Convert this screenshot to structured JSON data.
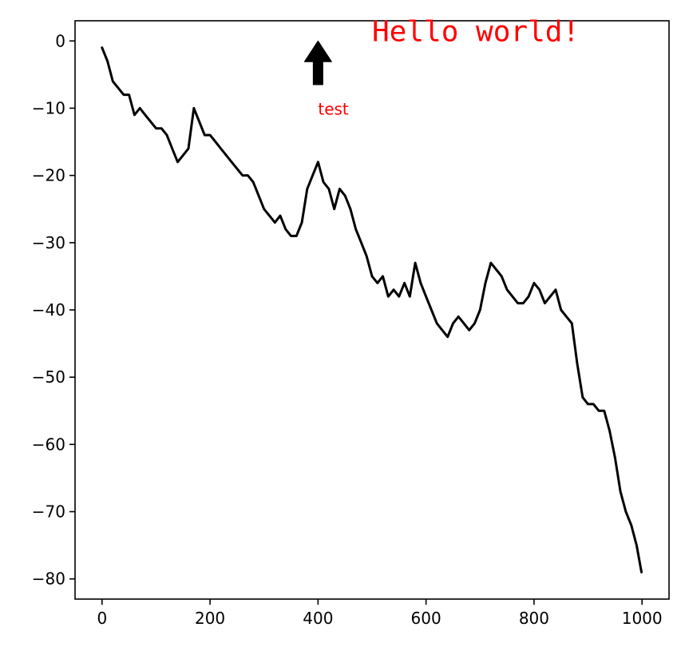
{
  "chart_data": {
    "type": "line",
    "title": "",
    "xlabel": "",
    "ylabel": "",
    "xlim": [
      -50,
      1050
    ],
    "ylim": [
      -83,
      3
    ],
    "x_ticks": [
      0,
      200,
      400,
      600,
      800,
      1000
    ],
    "y_ticks": [
      0,
      -10,
      -20,
      -30,
      -40,
      -50,
      -60,
      -70,
      -80
    ],
    "x_tick_labels": [
      "0",
      "200",
      "400",
      "600",
      "800",
      "1000"
    ],
    "y_tick_labels": [
      "0",
      "−10",
      "−20",
      "−30",
      "−40",
      "−50",
      "−60",
      "−70",
      "−80"
    ],
    "grid": false,
    "legend": "none",
    "series": [
      {
        "color": "#000000",
        "x": [
          0,
          10,
          20,
          30,
          40,
          50,
          60,
          70,
          80,
          90,
          100,
          110,
          120,
          130,
          140,
          150,
          160,
          170,
          180,
          190,
          200,
          210,
          220,
          230,
          240,
          250,
          260,
          270,
          280,
          290,
          300,
          310,
          320,
          330,
          340,
          350,
          360,
          370,
          380,
          390,
          400,
          410,
          420,
          430,
          440,
          450,
          460,
          470,
          480,
          490,
          500,
          510,
          520,
          530,
          540,
          550,
          560,
          570,
          580,
          590,
          600,
          610,
          620,
          630,
          640,
          650,
          660,
          670,
          680,
          690,
          700,
          710,
          720,
          730,
          740,
          750,
          760,
          770,
          780,
          790,
          800,
          810,
          820,
          830,
          840,
          850,
          860,
          870,
          880,
          890,
          900,
          910,
          920,
          930,
          940,
          950,
          960,
          970,
          980,
          990,
          999
        ],
        "y": [
          -1,
          -3,
          -6,
          -7,
          -8,
          -8,
          -11,
          -10,
          -11,
          -12,
          -13,
          -13,
          -14,
          -16,
          -18,
          -17,
          -16,
          -10,
          -12,
          -14,
          -14,
          -15,
          -16,
          -17,
          -18,
          -19,
          -20,
          -20,
          -21,
          -23,
          -25,
          -26,
          -27,
          -26,
          -28,
          -29,
          -29,
          -27,
          -22,
          -20,
          -18,
          -21,
          -22,
          -25,
          -22,
          -23,
          -25,
          -28,
          -30,
          -32,
          -35,
          -36,
          -35,
          -38,
          -37,
          -38,
          -36,
          -38,
          -33,
          -36,
          -38,
          -40,
          -42,
          -43,
          -44,
          -42,
          -41,
          -42,
          -43,
          -42,
          -40,
          -36,
          -33,
          -34,
          -35,
          -37,
          -38,
          -39,
          -39,
          -38,
          -36,
          -37,
          -39,
          -38,
          -37,
          -40,
          -41,
          -42,
          -48,
          -53,
          -54,
          -54,
          -55,
          -55,
          -58,
          -62,
          -67,
          -70,
          -72,
          -75,
          -79
        ]
      }
    ],
    "annotations": [
      {
        "text": "test",
        "x": 400,
        "y": -10,
        "color": "#ff0000",
        "arrow": true,
        "arrow_xy": [
          400,
          0
        ],
        "arrow_tail_y": -6.5
      },
      {
        "text": "Hello world!",
        "x": 500,
        "y": 0,
        "color": "#ff0000",
        "font": "monospace"
      }
    ]
  }
}
